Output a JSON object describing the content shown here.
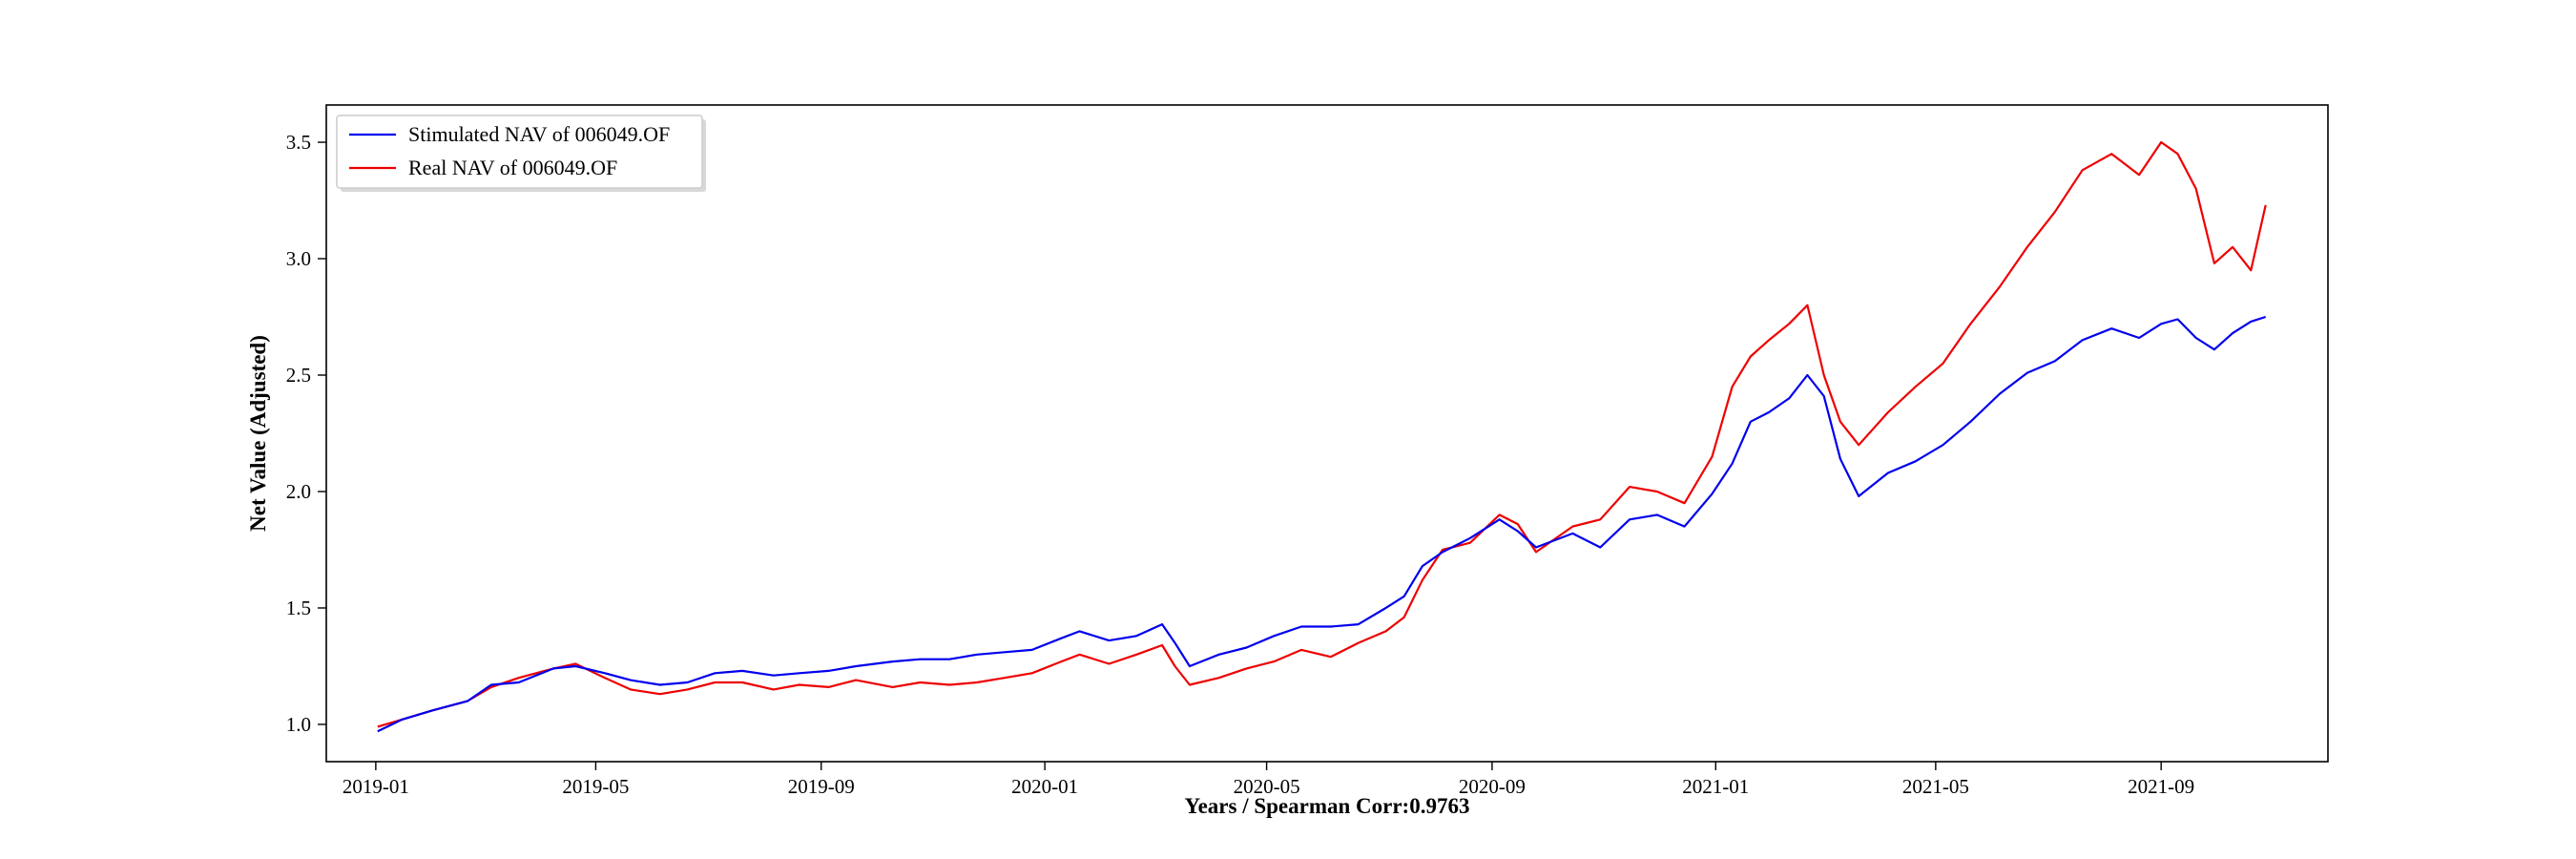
{
  "chart_data": {
    "type": "line",
    "title": "",
    "xlabel": "Years / Spearman Corr:0.9763",
    "ylabel": "Net Value (Adjusted)",
    "x_tick_labels": [
      "2019-01",
      "2019-05",
      "2019-09",
      "2020-01",
      "2020-05",
      "2020-09",
      "2021-01",
      "2021-05",
      "2021-09"
    ],
    "y_tick_labels": [
      "1.0",
      "1.5",
      "2.0",
      "2.5",
      "3.0",
      "3.5"
    ],
    "ylim": [
      0.84,
      3.66
    ],
    "xlim": [
      "2018-12-05",
      "2021-12-01"
    ],
    "grid": false,
    "legend": {
      "position": "top-left",
      "entries": [
        "Stimulated NAV of 006049.OF",
        "Real NAV of 006049.OF"
      ]
    },
    "colors": {
      "stimulated": "#0000ee",
      "real": "#ee0000"
    },
    "x": [
      "2019-01-02",
      "2019-01-15",
      "2019-02-01",
      "2019-02-20",
      "2019-03-05",
      "2019-03-20",
      "2019-04-08",
      "2019-04-20",
      "2019-05-06",
      "2019-05-20",
      "2019-06-05",
      "2019-06-20",
      "2019-07-05",
      "2019-07-20",
      "2019-08-06",
      "2019-08-20",
      "2019-09-05",
      "2019-09-20",
      "2019-10-10",
      "2019-10-25",
      "2019-11-10",
      "2019-11-25",
      "2019-12-10",
      "2019-12-25",
      "2020-01-10",
      "2020-01-20",
      "2020-02-05",
      "2020-02-20",
      "2020-03-05",
      "2020-03-12",
      "2020-03-20",
      "2020-04-05",
      "2020-04-20",
      "2020-05-05",
      "2020-05-20",
      "2020-06-05",
      "2020-06-20",
      "2020-07-05",
      "2020-07-15",
      "2020-07-25",
      "2020-08-05",
      "2020-08-20",
      "2020-09-05",
      "2020-09-15",
      "2020-09-25",
      "2020-10-15",
      "2020-10-30",
      "2020-11-15",
      "2020-11-30",
      "2020-12-15",
      "2020-12-30",
      "2021-01-10",
      "2021-01-20",
      "2021-01-30",
      "2021-02-10",
      "2021-02-20",
      "2021-03-01",
      "2021-03-10",
      "2021-03-20",
      "2021-04-05",
      "2021-04-20",
      "2021-05-05",
      "2021-05-20",
      "2021-06-05",
      "2021-06-20",
      "2021-07-05",
      "2021-07-20",
      "2021-08-05",
      "2021-08-20",
      "2021-09-01",
      "2021-09-10",
      "2021-09-20",
      "2021-09-30",
      "2021-10-10",
      "2021-10-20",
      "2021-10-28"
    ],
    "series": [
      {
        "name": "Stimulated NAV of 006049.OF",
        "values": [
          0.97,
          1.02,
          1.06,
          1.1,
          1.17,
          1.18,
          1.24,
          1.25,
          1.22,
          1.19,
          1.17,
          1.18,
          1.22,
          1.23,
          1.21,
          1.22,
          1.23,
          1.25,
          1.27,
          1.28,
          1.28,
          1.3,
          1.31,
          1.32,
          1.37,
          1.4,
          1.36,
          1.38,
          1.43,
          1.35,
          1.25,
          1.3,
          1.33,
          1.38,
          1.42,
          1.42,
          1.43,
          1.5,
          1.55,
          1.68,
          1.74,
          1.8,
          1.88,
          1.83,
          1.76,
          1.82,
          1.76,
          1.88,
          1.9,
          1.85,
          1.99,
          2.12,
          2.3,
          2.34,
          2.4,
          2.5,
          2.41,
          2.14,
          1.98,
          2.08,
          2.13,
          2.2,
          2.3,
          2.42,
          2.51,
          2.56,
          2.65,
          2.7,
          2.66,
          2.72,
          2.74,
          2.66,
          2.61,
          2.68,
          2.73,
          2.75
        ]
      },
      {
        "name": "Real NAV of 006049.OF",
        "values": [
          0.99,
          1.02,
          1.06,
          1.1,
          1.16,
          1.2,
          1.24,
          1.26,
          1.2,
          1.15,
          1.13,
          1.15,
          1.18,
          1.18,
          1.15,
          1.17,
          1.16,
          1.19,
          1.16,
          1.18,
          1.17,
          1.18,
          1.2,
          1.22,
          1.27,
          1.3,
          1.26,
          1.3,
          1.34,
          1.25,
          1.17,
          1.2,
          1.24,
          1.27,
          1.32,
          1.29,
          1.35,
          1.4,
          1.46,
          1.62,
          1.75,
          1.78,
          1.9,
          1.86,
          1.74,
          1.85,
          1.88,
          2.02,
          2.0,
          1.95,
          2.15,
          2.45,
          2.58,
          2.65,
          2.72,
          2.8,
          2.5,
          2.3,
          2.2,
          2.34,
          2.45,
          2.55,
          2.72,
          2.88,
          3.05,
          3.2,
          3.38,
          3.45,
          3.36,
          3.5,
          3.45,
          3.3,
          2.98,
          3.05,
          2.95,
          3.23
        ]
      }
    ]
  }
}
